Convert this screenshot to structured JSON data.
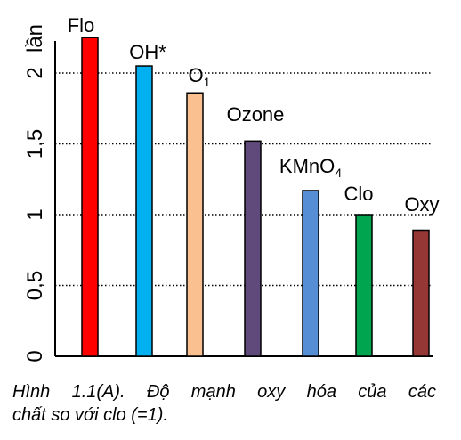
{
  "chart_data": {
    "type": "bar",
    "ylabel": "lần",
    "ylim": [
      0,
      2.25
    ],
    "yticks": [
      {
        "value": 0,
        "label": "0"
      },
      {
        "value": 0.5,
        "label": "0,5"
      },
      {
        "value": 1,
        "label": "1"
      },
      {
        "value": 1.5,
        "label": "1,5"
      },
      {
        "value": 2,
        "label": "2"
      }
    ],
    "grid": "dotted horizontal at 0.5, 1, 1.5, 2",
    "bars": [
      {
        "label": "Flo",
        "sub": "",
        "value": 2.25,
        "color": "#ff0000"
      },
      {
        "label": "OH*",
        "sub": "",
        "value": 2.05,
        "color": "#00b0f0"
      },
      {
        "label": "O",
        "sub": "1",
        "value": 1.86,
        "color": "#fac090"
      },
      {
        "label": "Ozone",
        "sub": "",
        "value": 1.52,
        "color": "#604a7b"
      },
      {
        "label": "KMnO",
        "sub": "4",
        "value": 1.17,
        "color": "#558ed5"
      },
      {
        "label": "Clo",
        "sub": "",
        "value": 1.0,
        "color": "#00a550"
      },
      {
        "label": "Oxy",
        "sub": "",
        "value": 0.89,
        "color": "#953735"
      }
    ]
  },
  "caption": {
    "line1": "Hình 1.1(A). Độ mạnh oxy hóa của các",
    "line2": "chất so với clo (=1)."
  }
}
